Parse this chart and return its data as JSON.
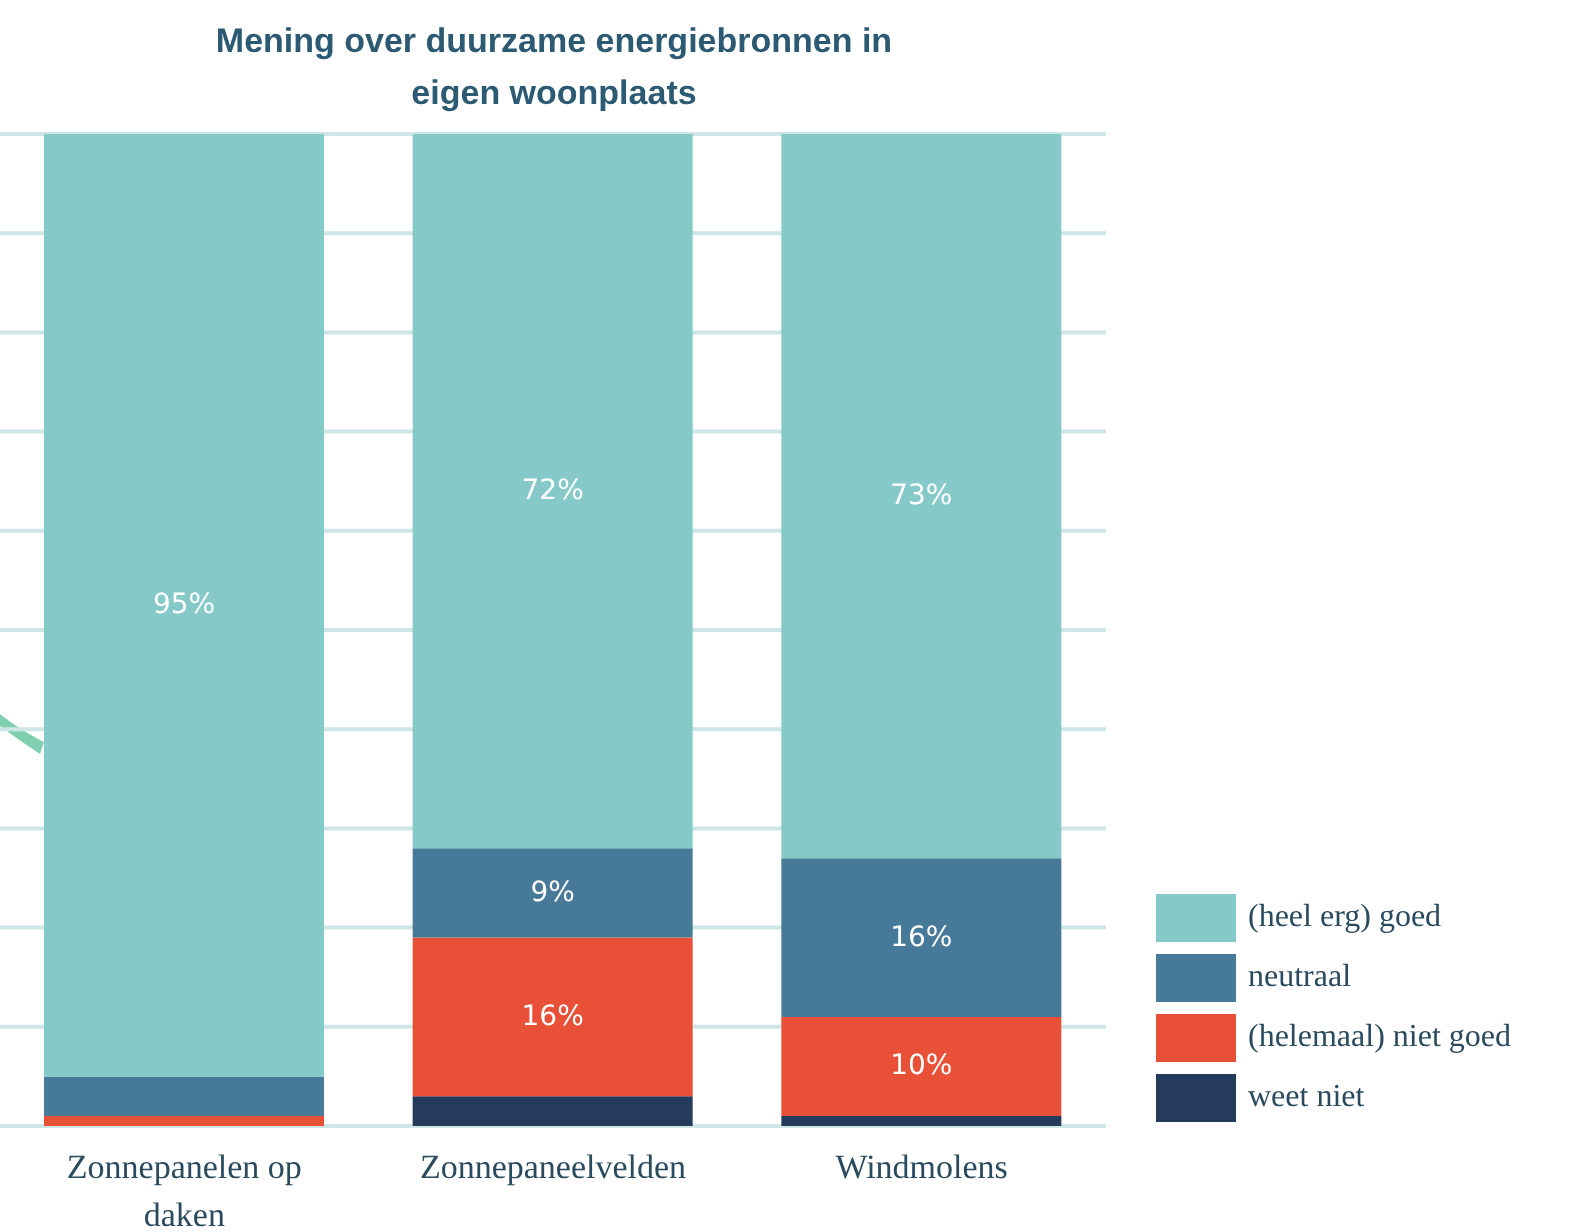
{
  "chart_data": {
    "type": "bar",
    "title": "Mening over duurzame energiebronnen in eigen woonplaats",
    "categories": [
      "Zonnepanelen op daken",
      "Zonnepaneelvelden",
      "Windmolens"
    ],
    "stacked": true,
    "ylim": [
      0,
      100
    ],
    "yticks": [
      {
        "value": 0,
        "label": null
      },
      {
        "value": 10,
        "label": null
      },
      {
        "value": 20,
        "label": null
      },
      {
        "value": 30,
        "label": null
      },
      {
        "value": 40,
        "label": null
      },
      {
        "value": 50,
        "label": null
      },
      {
        "value": 60,
        "label": null
      },
      {
        "value": 70,
        "label": null
      },
      {
        "value": 80,
        "label": null
      },
      {
        "value": 90,
        "label": null
      },
      {
        "value": 100,
        "label": null
      }
    ],
    "tick_labels": "x",
    "grid": "y",
    "legend": "right",
    "series": [
      {
        "name": "weet niet",
        "color": "#243b5c",
        "values": [
          0,
          3,
          1
        ],
        "value_labels": [
          null,
          null,
          null
        ]
      },
      {
        "name": "(helemaal) niet goed",
        "color": "#e85038",
        "values": [
          1,
          16,
          10
        ],
        "value_labels": [
          null,
          "16%",
          "10%"
        ]
      },
      {
        "name": "neutraal",
        "color": "#477a99",
        "values": [
          4,
          9,
          16
        ],
        "value_labels": [
          null,
          "9%",
          "16%"
        ]
      },
      {
        "name": "(heel erg) goed",
        "color": "#85c9c9",
        "values": [
          95,
          72,
          73
        ],
        "value_labels": [
          "95%",
          "72%",
          "73%"
        ]
      }
    ]
  }
}
